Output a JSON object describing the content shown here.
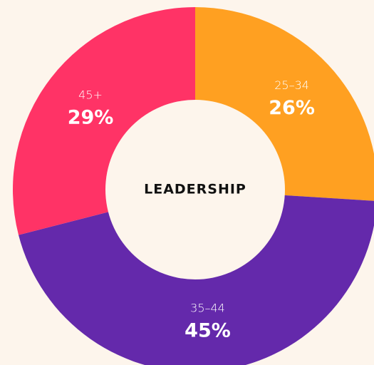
{
  "chart_data": {
    "type": "donut",
    "title": "LEADERSHIP",
    "categories": [
      "25–34",
      "35–44",
      "45+"
    ],
    "values": [
      26,
      45,
      29
    ],
    "value_labels": [
      "26%",
      "45%",
      "29%"
    ],
    "colors": [
      "#ffa021",
      "#6429ab",
      "#ff3366"
    ]
  }
}
